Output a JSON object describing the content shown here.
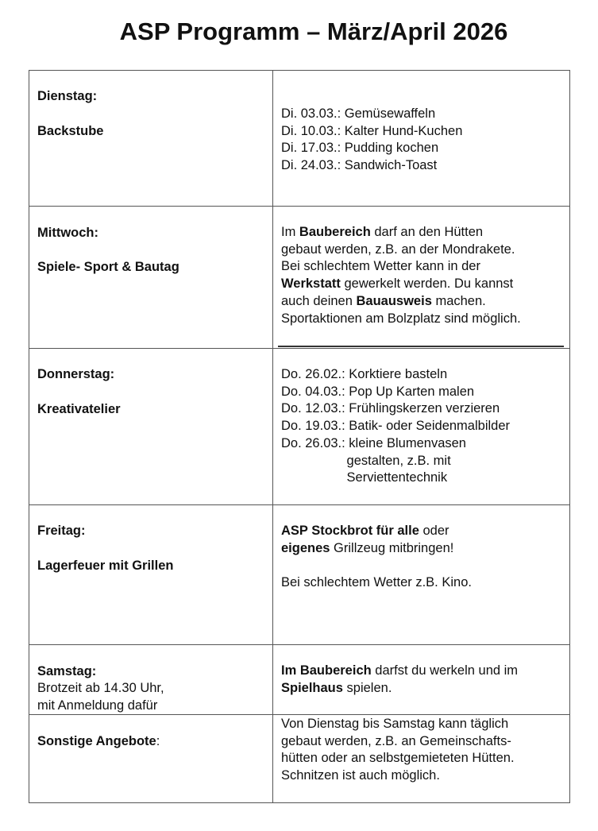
{
  "title": "ASP Programm – März/April 2026",
  "rows": [
    {
      "day": "Dienstag:",
      "topic": "Backstube",
      "content": [
        [
          {
            "t": "Di. 03.03.: Gemüsewaffeln"
          }
        ],
        [
          {
            "t": "Di. 10.03.: Kalter Hund-Kuchen"
          }
        ],
        [
          {
            "t": "Di. 17.03.: Pudding kochen"
          }
        ],
        [
          {
            "t": "Di. 24.03.: Sandwich-Toast"
          }
        ]
      ]
    },
    {
      "day": "Mittwoch:",
      "topic": "Spiele- Sport & Bautag",
      "content": [
        [
          {
            "t": "Im "
          },
          {
            "t": "Baubereich",
            "b": true
          },
          {
            "t": " darf an den Hütten"
          }
        ],
        [
          {
            "t": "gebaut werden, z.B. an der Mondrakete."
          }
        ],
        [
          {
            "t": "Bei schlechtem Wetter kann in der"
          }
        ],
        [
          {
            "t": "Werkstatt",
            "b": true
          },
          {
            "t": " gewerkelt werden. Du kannst"
          }
        ],
        [
          {
            "t": "auch deinen "
          },
          {
            "t": "Bauausweis",
            "b": true
          },
          {
            "t": " machen."
          }
        ],
        [
          {
            "t": "Sportaktionen am Bolzplatz sind möglich."
          }
        ]
      ]
    },
    {
      "day": "Donnerstag:",
      "topic": "Kreativatelier",
      "content": [
        [
          {
            "t": "Do. 26.02.: Korktiere basteln"
          }
        ],
        [
          {
            "t": "Do. 04.03.: Pop Up Karten malen"
          }
        ],
        [
          {
            "t": "Do. 12.03.: Frühlingskerzen verzieren"
          }
        ],
        [
          {
            "t": "Do. 19.03.: Batik- oder Seidenmalbilder"
          }
        ],
        [
          {
            "t": "Do. 26.03.: kleine Blumenvasen"
          }
        ],
        [
          {
            "t": "                  gestalten, z.B. mit"
          }
        ],
        [
          {
            "t": "                  Serviettentechnik"
          }
        ]
      ]
    },
    {
      "day": "Freitag:",
      "topic": "Lagerfeuer mit Grillen",
      "content": [
        [
          {
            "t": "ASP Stockbrot für alle",
            "b": true
          },
          {
            "t": " oder"
          }
        ],
        [
          {
            "t": "eigenes",
            "b": true
          },
          {
            "t": " Grillzeug mitbringen!"
          }
        ],
        [
          {
            "t": " "
          }
        ],
        [
          {
            "t": "Bei schlechtem Wetter z.B. Kino."
          }
        ]
      ]
    },
    {
      "day": "Samstag:",
      "details": [
        "Brotzeit ab 14.30 Uhr,",
        "mit Anmeldung dafür"
      ],
      "content": [
        [
          {
            "t": "Im Baubereich",
            "b": true
          },
          {
            "t": " darfst du werkeln und im"
          }
        ],
        [
          {
            "t": "Spielhaus",
            "b": true
          },
          {
            "t": " spielen."
          }
        ]
      ]
    },
    {
      "day": "Sonstige Angebote",
      "day_suffix": ":",
      "content": [
        [
          {
            "t": "Von Dienstag bis Samstag kann täglich"
          }
        ],
        [
          {
            "t": "gebaut werden, z.B. an Gemeinschafts-"
          }
        ],
        [
          {
            "t": "hütten oder an selbstgemieteten Hütten."
          }
        ],
        [
          {
            "t": "Schnitzen ist auch möglich."
          }
        ]
      ]
    }
  ]
}
